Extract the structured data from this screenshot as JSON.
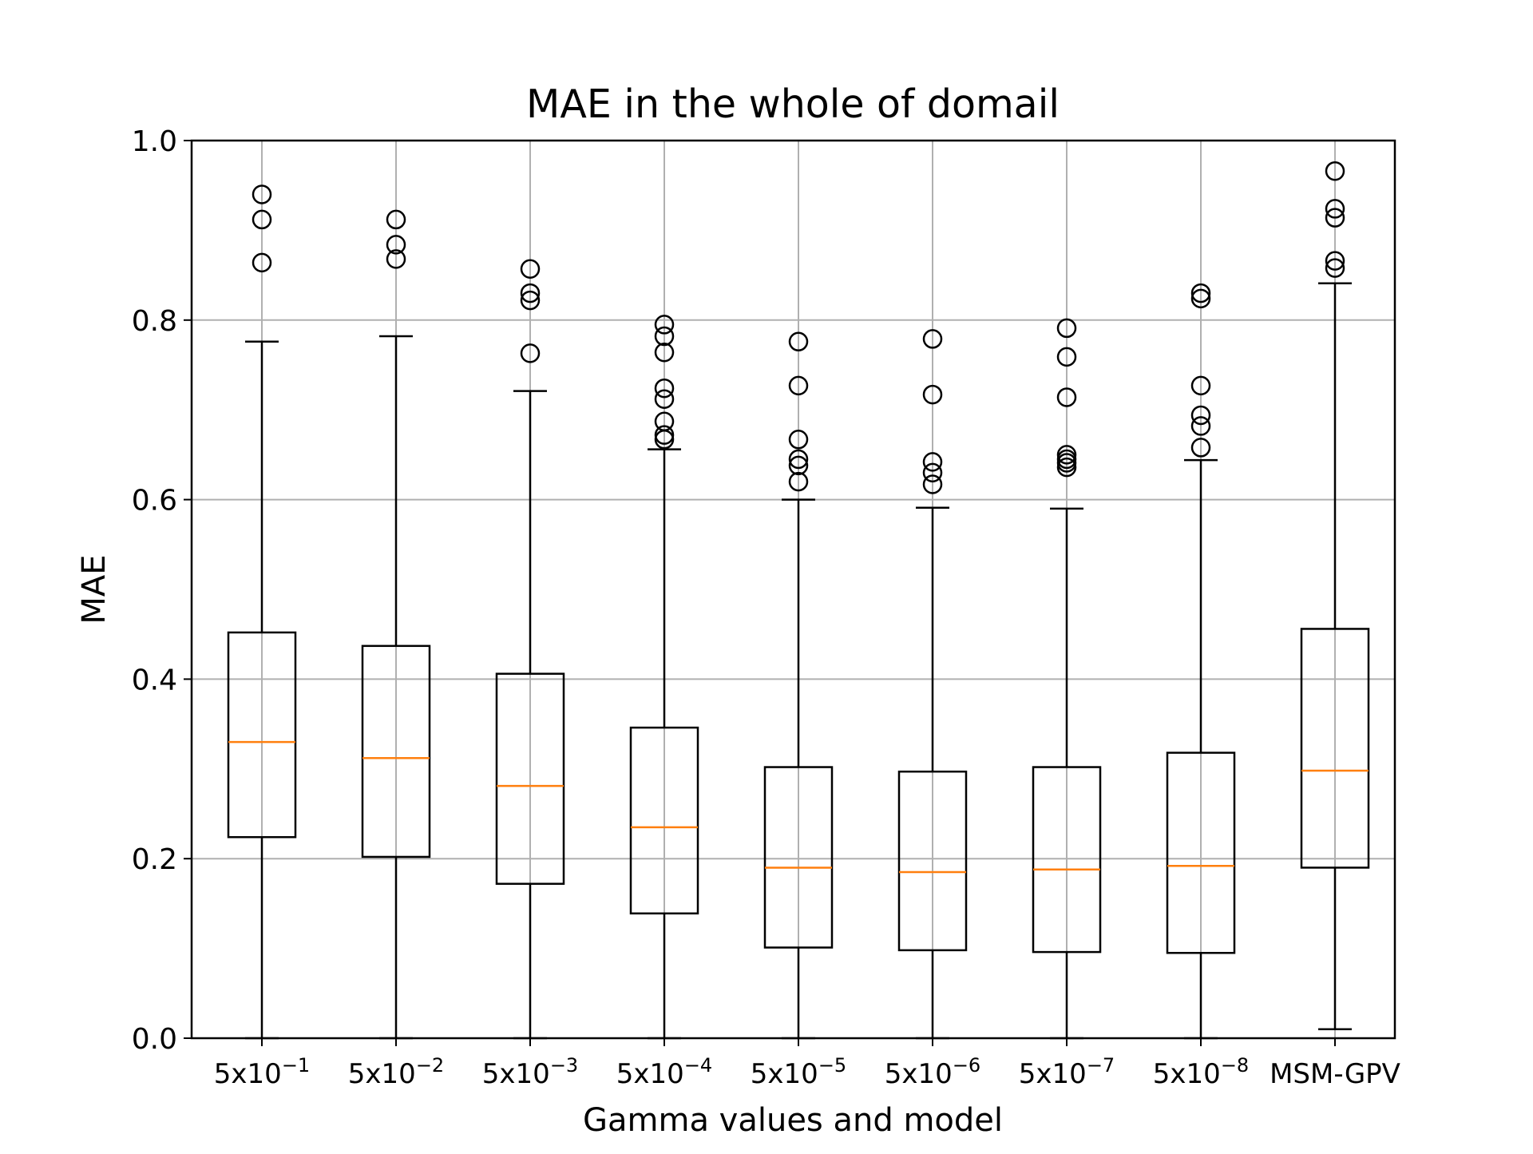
{
  "chart_data": {
    "type": "box",
    "title": "MAE in the whole of domail",
    "xlabel": "Gamma values and model",
    "ylabel": "MAE",
    "ylim": [
      0.0,
      1.0
    ],
    "yticks": [
      "0.0",
      "0.2",
      "0.4",
      "0.6",
      "0.8",
      "1.0"
    ],
    "grid": true,
    "categories": [
      {
        "base": "5x10",
        "exp": "−1"
      },
      {
        "base": "5x10",
        "exp": "−2"
      },
      {
        "base": "5x10",
        "exp": "−3"
      },
      {
        "base": "5x10",
        "exp": "−4"
      },
      {
        "base": "5x10",
        "exp": "−5"
      },
      {
        "base": "5x10",
        "exp": "−6"
      },
      {
        "base": "5x10",
        "exp": "−7"
      },
      {
        "base": "5x10",
        "exp": "−8"
      },
      {
        "base": "MSM-GPV",
        "exp": ""
      }
    ],
    "boxes": [
      {
        "whisker_low": 0.0,
        "q1": 0.224,
        "median": 0.33,
        "q3": 0.452,
        "whisker_high": 0.776,
        "outliers": [
          0.864,
          0.912,
          0.94
        ]
      },
      {
        "whisker_low": 0.0,
        "q1": 0.202,
        "median": 0.312,
        "q3": 0.437,
        "whisker_high": 0.782,
        "outliers": [
          0.868,
          0.884,
          0.912
        ]
      },
      {
        "whisker_low": 0.0,
        "q1": 0.172,
        "median": 0.281,
        "q3": 0.406,
        "whisker_high": 0.721,
        "outliers": [
          0.763,
          0.822,
          0.83,
          0.857
        ]
      },
      {
        "whisker_low": 0.0,
        "q1": 0.139,
        "median": 0.235,
        "q3": 0.346,
        "whisker_high": 0.656,
        "outliers": [
          0.667,
          0.672,
          0.687,
          0.712,
          0.724,
          0.764,
          0.782,
          0.795
        ]
      },
      {
        "whisker_low": 0.0,
        "q1": 0.101,
        "median": 0.19,
        "q3": 0.302,
        "whisker_high": 0.6,
        "outliers": [
          0.62,
          0.638,
          0.645,
          0.667,
          0.727,
          0.776
        ]
      },
      {
        "whisker_low": 0.0,
        "q1": 0.098,
        "median": 0.185,
        "q3": 0.297,
        "whisker_high": 0.591,
        "outliers": [
          0.617,
          0.63,
          0.642,
          0.717,
          0.779
        ]
      },
      {
        "whisker_low": 0.0,
        "q1": 0.096,
        "median": 0.188,
        "q3": 0.302,
        "whisker_high": 0.59,
        "outliers": [
          0.636,
          0.641,
          0.645,
          0.65,
          0.714,
          0.759,
          0.791
        ]
      },
      {
        "whisker_low": 0.0,
        "q1": 0.095,
        "median": 0.192,
        "q3": 0.318,
        "whisker_high": 0.644,
        "outliers": [
          0.658,
          0.682,
          0.694,
          0.727,
          0.824,
          0.83
        ]
      },
      {
        "whisker_low": 0.01,
        "q1": 0.19,
        "median": 0.298,
        "q3": 0.456,
        "whisker_high": 0.841,
        "outliers": [
          0.858,
          0.866,
          0.914,
          0.924,
          0.966
        ]
      }
    ],
    "colors": {
      "box": "#000000",
      "median": "#ff7f0e",
      "grid": "#b0b0b0",
      "outlier": "#000000"
    }
  }
}
